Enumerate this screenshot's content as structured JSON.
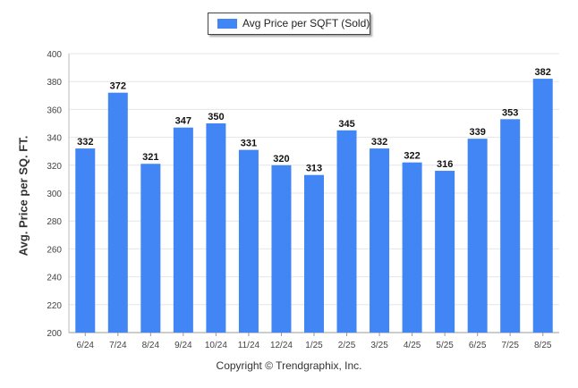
{
  "chart_data": {
    "type": "bar",
    "categories": [
      "6/24",
      "7/24",
      "8/24",
      "9/24",
      "10/24",
      "11/24",
      "12/24",
      "1/25",
      "2/25",
      "3/25",
      "4/25",
      "5/25",
      "6/25",
      "7/25",
      "8/25"
    ],
    "series": [
      {
        "name": "Avg Price per SQFT (Sold)",
        "values": [
          332,
          372,
          321,
          347,
          350,
          331,
          320,
          313,
          345,
          332,
          322,
          316,
          339,
          353,
          382
        ]
      }
    ],
    "ylabel": "Avg. Price per SQ. FT.",
    "ylim": [
      200,
      400
    ],
    "yticks": [
      200,
      220,
      240,
      260,
      280,
      300,
      320,
      340,
      360,
      380,
      400
    ],
    "grid": true,
    "legend": "top-center",
    "bar_color": "#4285f4"
  },
  "footer": "Copyright © Trendgraphix, Inc."
}
